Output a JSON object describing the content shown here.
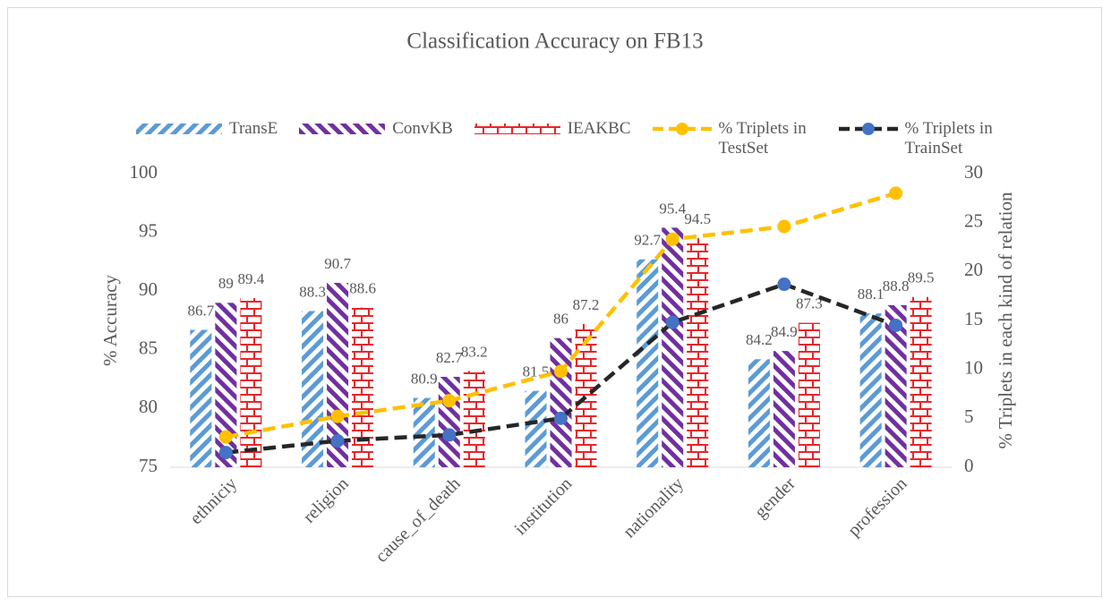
{
  "chart_data": {
    "type": "bar-line",
    "title": "Classification Accuracy on FB13",
    "categories": [
      "ethniciy",
      "religion",
      "cause_of_death",
      "institution",
      "nationality",
      "gender",
      "profession"
    ],
    "series": [
      {
        "name": "TransE",
        "type": "bar",
        "color": "#5b9bd5",
        "pattern": "hatch-right",
        "values": [
          86.7,
          88.3,
          80.9,
          81.5,
          92.7,
          84.2,
          88.1
        ]
      },
      {
        "name": "ConvKB",
        "type": "bar",
        "color": "#7030a0",
        "pattern": "hatch-left",
        "values": [
          89,
          90.7,
          82.7,
          86,
          95.4,
          84.9,
          88.8
        ]
      },
      {
        "name": "IEAKBC",
        "type": "bar",
        "color": "#e8262a",
        "pattern": "brick",
        "values": [
          89.4,
          88.6,
          83.2,
          87.2,
          94.5,
          87.3,
          89.5
        ]
      },
      {
        "name": "% Triplets in TestSet",
        "type": "line",
        "axis": "y2",
        "color": "#ffc000",
        "marker_color": "#ffc000",
        "values": [
          3.1,
          5.2,
          6.8,
          9.8,
          23.3,
          24.6,
          28.0
        ]
      },
      {
        "name": "% Triplets in TrainSet",
        "type": "line",
        "axis": "y2",
        "color": "#262626",
        "marker_color": "#4472c4",
        "values": [
          1.5,
          2.7,
          3.3,
          5.0,
          14.8,
          18.7,
          14.5
        ]
      }
    ],
    "y_label": "% Accuracy",
    "y2_label": "% Triplets in each kind of relation",
    "ylim": [
      75,
      100
    ],
    "yticks": [
      75,
      80,
      85,
      90,
      95,
      100
    ],
    "y2lim": [
      0,
      30
    ],
    "y2ticks": [
      0,
      5,
      10,
      15,
      20,
      25,
      30
    ]
  }
}
